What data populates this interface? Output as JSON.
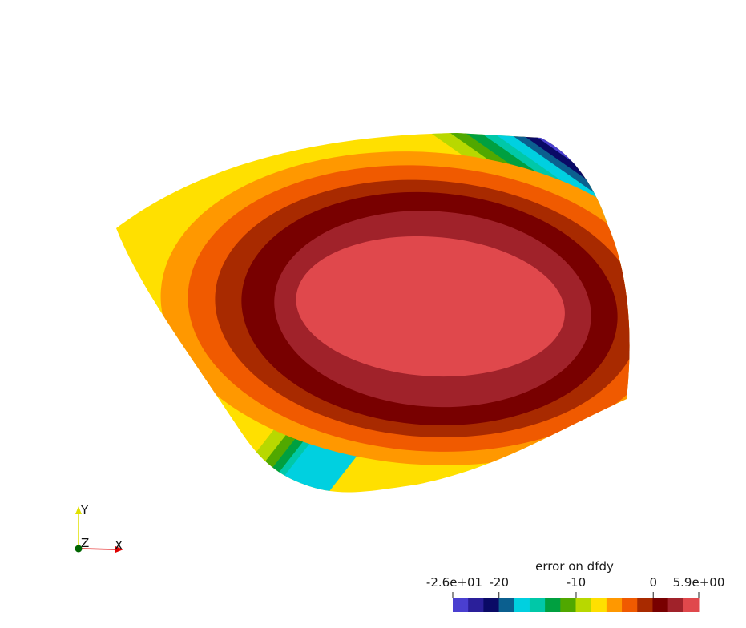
{
  "colorbar": {
    "title": "error on dfdy",
    "ticks": [
      {
        "label": "-2.6e+01",
        "value": -26
      },
      {
        "label": "-20",
        "value": -20
      },
      {
        "label": "-10",
        "value": -10
      },
      {
        "label": "0",
        "value": 0
      },
      {
        "label": "5.9e+00",
        "value": 5.9
      }
    ],
    "range": [
      -26,
      5.9
    ],
    "colors": [
      "#4a3fd0",
      "#2a1f9a",
      "#0a0a66",
      "#0b5f8f",
      "#00d0e0",
      "#00c8a8",
      "#00a040",
      "#50a800",
      "#b8d800",
      "#ffe000",
      "#ff9800",
      "#f05a00",
      "#a82a00",
      "#780000",
      "#a0222a",
      "#e0484c"
    ]
  },
  "axes_triad": {
    "x": "X",
    "y": "Y",
    "z": "Z"
  },
  "surface": {
    "levels": [
      {
        "color": "#4a3fd0"
      },
      {
        "color": "#2a1f9a"
      },
      {
        "color": "#0a0a66"
      },
      {
        "color": "#0b5f8f"
      },
      {
        "color": "#00d0e0"
      },
      {
        "color": "#00c8a8"
      },
      {
        "color": "#00a040"
      },
      {
        "color": "#50a800"
      },
      {
        "color": "#b8d800"
      },
      {
        "color": "#ffe000"
      },
      {
        "color": "#ff9800"
      },
      {
        "color": "#f05a00"
      },
      {
        "color": "#a82a00"
      },
      {
        "color": "#780000"
      },
      {
        "color": "#a0222a"
      },
      {
        "color": "#e0484c"
      }
    ]
  }
}
